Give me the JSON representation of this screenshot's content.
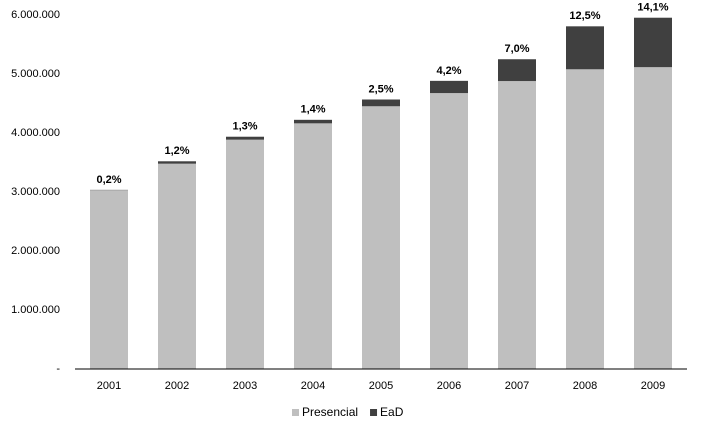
{
  "chart_data": {
    "type": "stacked-bar",
    "categories": [
      "2001",
      "2002",
      "2003",
      "2004",
      "2005",
      "2006",
      "2007",
      "2008",
      "2009"
    ],
    "series": [
      {
        "name": "Presencial",
        "color": "#bfbfbf",
        "values": [
          3030754,
          3479913,
          3887022,
          4163733,
          4453156,
          4676646,
          4880381,
          5080056,
          5115896
        ]
      },
      {
        "name": "EaD",
        "color": "#404040",
        "values": [
          5359,
          40714,
          49911,
          59611,
          114642,
          207206,
          369766,
          727961,
          838125
        ]
      }
    ],
    "shares": {
      "values": [
        0.2,
        1.2,
        1.3,
        1.4,
        2.5,
        4.2,
        7.0,
        12.5,
        14.1
      ],
      "value_labels": [
        "0,2%",
        "1,2%",
        "1,3%",
        "1,4%",
        "2,5%",
        "4,2%",
        "7,0%",
        "12,5%",
        "14,1%"
      ]
    },
    "ylim": [
      0,
      6000000
    ],
    "yticks": [
      {
        "value": 0,
        "label": "-"
      },
      {
        "value": 1000000,
        "label": "1.000.000"
      },
      {
        "value": 2000000,
        "label": "2.000.000"
      },
      {
        "value": 3000000,
        "label": "3.000.000"
      },
      {
        "value": 4000000,
        "label": "4.000.000"
      },
      {
        "value": 5000000,
        "label": "5.000.000"
      },
      {
        "value": 6000000,
        "label": "6.000.000"
      }
    ],
    "grid": false,
    "legend": "bottom"
  }
}
